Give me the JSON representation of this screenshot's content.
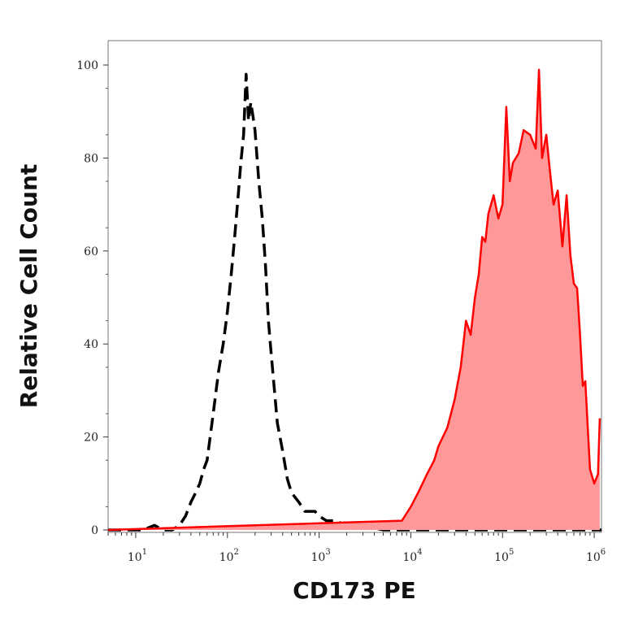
{
  "chart_data": {
    "type": "area",
    "title": "",
    "xlabel": "CD173 PE",
    "ylabel": "Relative Cell Count",
    "x_scale": "log",
    "xlim": [
      5,
      1200000
    ],
    "ylim": [
      0,
      100
    ],
    "x_ticks": [
      {
        "base": "10",
        "exp": "1",
        "value": 10
      },
      {
        "base": "10",
        "exp": "2",
        "value": 100
      },
      {
        "base": "10",
        "exp": "3",
        "value": 1000
      },
      {
        "base": "10",
        "exp": "4",
        "value": 10000
      },
      {
        "base": "10",
        "exp": "5",
        "value": 100000
      },
      {
        "base": "10",
        "exp": "6",
        "value": 1000000
      }
    ],
    "y_ticks": [
      0,
      20,
      40,
      60,
      80,
      100
    ],
    "grid": false,
    "legend": "none",
    "series": [
      {
        "style": "dashed-line",
        "color": "#000000",
        "x": [
          5,
          12,
          16,
          20,
          25,
          30,
          35,
          40,
          45,
          50,
          55,
          60,
          70,
          80,
          90,
          100,
          110,
          120,
          130,
          140,
          150,
          160,
          170,
          180,
          190,
          200,
          220,
          240,
          260,
          280,
          300,
          350,
          400,
          450,
          500,
          600,
          700,
          800,
          900,
          1000,
          1200,
          1500,
          2000,
          3000,
          5000,
          8000,
          1200000
        ],
        "y": [
          0,
          0,
          1,
          0,
          0,
          1,
          3,
          6,
          8,
          10,
          13,
          15,
          25,
          34,
          40,
          47,
          55,
          63,
          71,
          79,
          85,
          98,
          88,
          92,
          89,
          86,
          75,
          67,
          57,
          45,
          38,
          23,
          17,
          11,
          8,
          6,
          4,
          4,
          4,
          3,
          2,
          2,
          1,
          1,
          0,
          0,
          0
        ]
      },
      {
        "style": "filled",
        "color": "#ff0000",
        "fill": "#ff9999",
        "x": [
          5,
          8000,
          10000,
          12000,
          15000,
          18000,
          20000,
          25000,
          30000,
          35000,
          40000,
          45000,
          50000,
          55000,
          60000,
          65000,
          70000,
          80000,
          90000,
          100000,
          110000,
          120000,
          130000,
          150000,
          170000,
          200000,
          230000,
          250000,
          270000,
          300000,
          330000,
          360000,
          400000,
          450000,
          500000,
          550000,
          600000,
          650000,
          700000,
          750000,
          800000,
          850000,
          900000,
          1000000,
          1100000,
          1150000
        ],
        "y": [
          0,
          2,
          5,
          8,
          12,
          15,
          18,
          22,
          28,
          35,
          45,
          42,
          50,
          55,
          63,
          62,
          68,
          72,
          67,
          70,
          91,
          75,
          79,
          81,
          86,
          85,
          82,
          99,
          80,
          85,
          77,
          70,
          73,
          61,
          72,
          59,
          53,
          52,
          42,
          31,
          32,
          22,
          13,
          10,
          12,
          24
        ]
      }
    ]
  }
}
